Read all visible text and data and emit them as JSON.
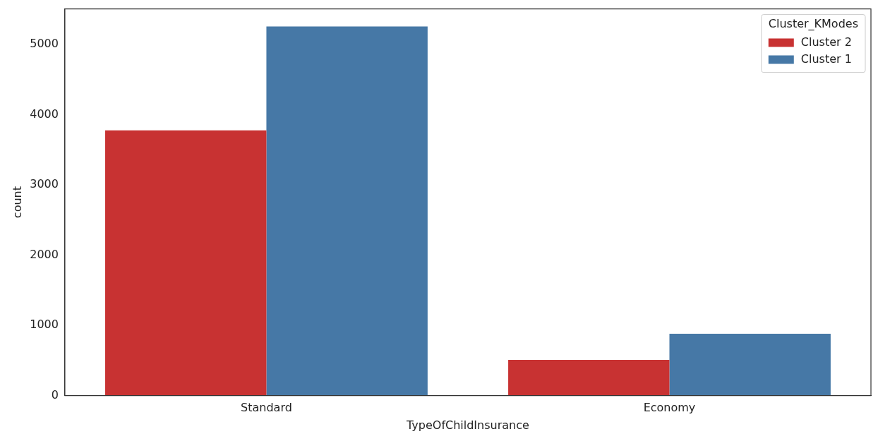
{
  "chart_data": {
    "type": "bar",
    "xlabel": "TypeOfChildInsurance",
    "ylabel": "count",
    "legend_title": "Cluster_KModes",
    "categories": [
      "Standard",
      "Economy"
    ],
    "series": [
      {
        "name": "Cluster 2",
        "color": "#c83232",
        "values": [
          3780,
          510
        ]
      },
      {
        "name": "Cluster 1",
        "color": "#4678a6",
        "values": [
          5260,
          880
        ]
      }
    ],
    "ylim": [
      0,
      5510
    ],
    "yticks": [
      0,
      1000,
      2000,
      3000,
      4000,
      5000
    ],
    "grid": false,
    "legend": "top right"
  }
}
